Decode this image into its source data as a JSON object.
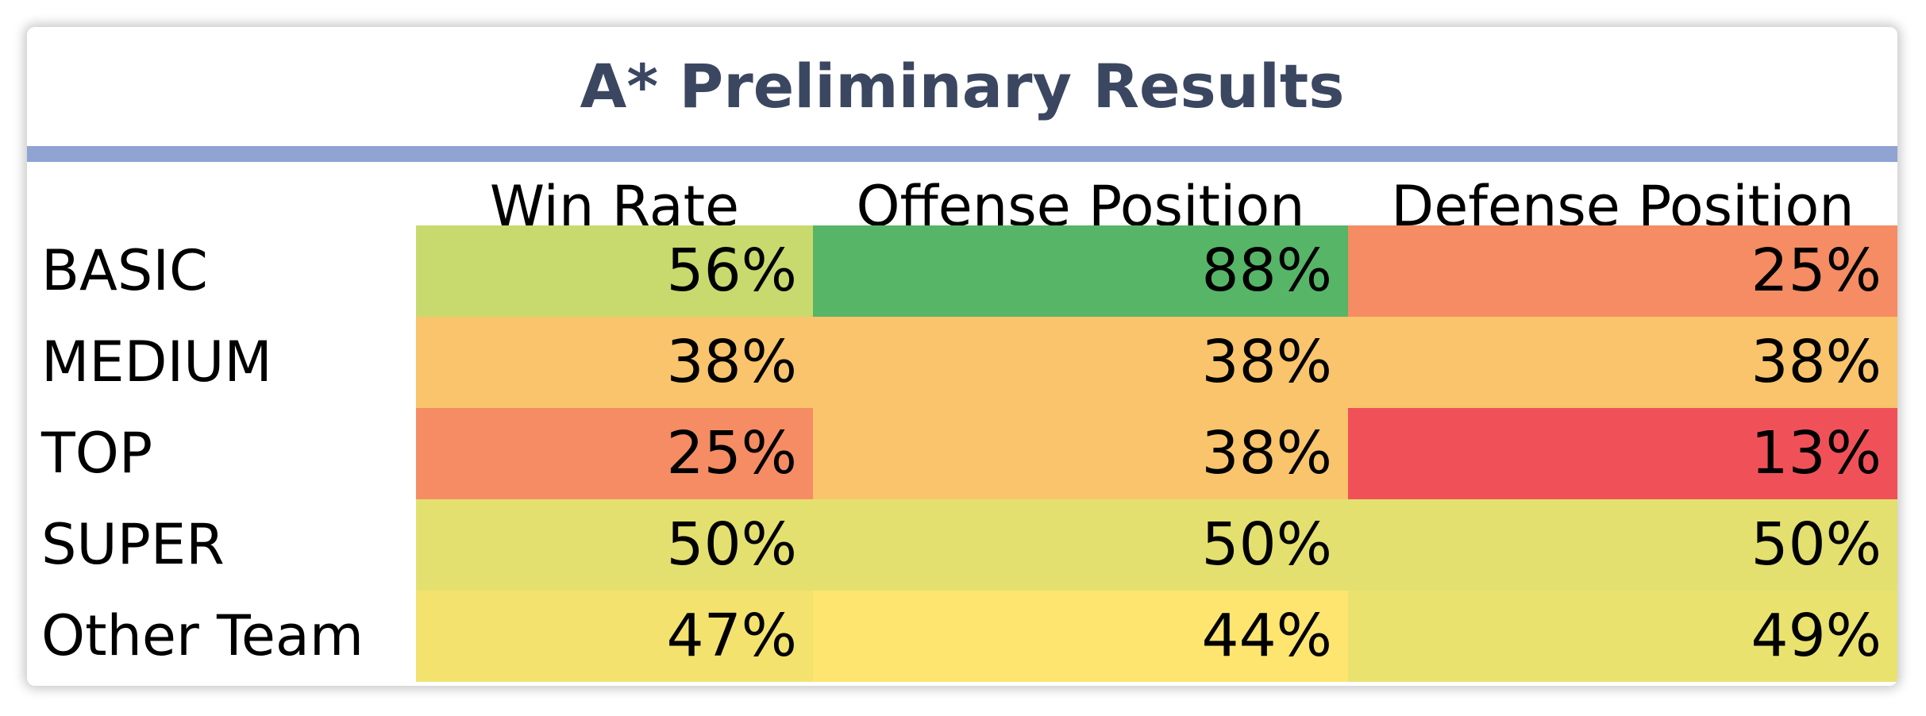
{
  "chart_data": {
    "type": "table",
    "title": "A* Preliminary Results",
    "columns": [
      "Win Rate",
      "Offense Position",
      "Defense Position"
    ],
    "rows": [
      {
        "label": "BASIC",
        "values": [
          "56%",
          "88%",
          "25%"
        ],
        "colors": [
          "#c8da6e",
          "#56b567",
          "#f58c63"
        ]
      },
      {
        "label": "MEDIUM",
        "values": [
          "38%",
          "38%",
          "38%"
        ],
        "colors": [
          "#f9c46b",
          "#f9c46b",
          "#f9c46b"
        ]
      },
      {
        "label": "TOP",
        "values": [
          "25%",
          "38%",
          "13%"
        ],
        "colors": [
          "#f58c63",
          "#f9c46b",
          "#f05158"
        ]
      },
      {
        "label": "SUPER",
        "values": [
          "50%",
          "50%",
          "50%"
        ],
        "colors": [
          "#e4e06f",
          "#e4e06f",
          "#e4e06f"
        ]
      },
      {
        "label": "Other Team",
        "values": [
          "47%",
          "44%",
          "49%"
        ],
        "colors": [
          "#f3e26e",
          "#fde56f",
          "#e9e26f"
        ]
      }
    ]
  }
}
